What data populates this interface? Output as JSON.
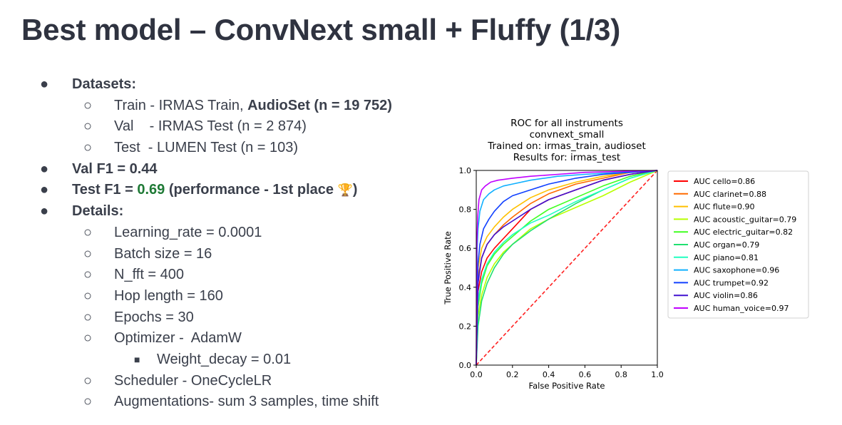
{
  "title": "Best model – ConvNext small + Fluffy (1/3)",
  "bullets": {
    "datasets_label": "Datasets:",
    "train_prefix": "Train - IRMAS Train, ",
    "train_bold": "AudioSet (n = 19 752)",
    "val": "Val    - IRMAS Test (n = 2 874)",
    "test": "Test  - LUMEN Test (n = 103)",
    "val_f1": "Val F1 = 0.44",
    "test_f1_prefix": "Test F1 = ",
    "test_f1_value": "0.69",
    "test_f1_suffix": " (performance - 1st place ",
    "test_f1_close": ")",
    "details_label": "Details:",
    "learning_rate": "Learning_rate = 0.0001",
    "batch_size": "Batch size = 16",
    "n_fft": "N_fft = 400",
    "hop_length": "Hop length = 160",
    "epochs": "Epochs = 30",
    "optimizer": "Optimizer -  AdamW",
    "weight_decay": "Weight_decay = 0.01",
    "scheduler": "Scheduler - OneCycleLR",
    "augmentations": "Augmentations- sum 3 samples, time shift"
  },
  "markers": {
    "level0": "●",
    "level1": "○",
    "level2": "■",
    "trophy": "🏆"
  },
  "chart_data": {
    "type": "line",
    "title_lines": [
      "ROC for all instruments",
      "convnext_small",
      "Trained on: irmas_train, audioset",
      "Results for: irmas_test"
    ],
    "xlabel": "False Positive Rate",
    "ylabel": "True Positive Rate",
    "xlim": [
      0,
      1
    ],
    "ylim": [
      0,
      1
    ],
    "xticks": [
      "0.0",
      "0.2",
      "0.4",
      "0.6",
      "0.8",
      "1.0"
    ],
    "yticks": [
      "0.0",
      "0.2",
      "0.4",
      "0.6",
      "0.8",
      "1.0"
    ],
    "legend_position": "outside-right",
    "chance_line_color": "#ff2020",
    "series": [
      {
        "name": "AUC cello=0.86",
        "color": "#ff0000",
        "x": [
          0,
          0.01,
          0.03,
          0.06,
          0.1,
          0.15,
          0.2,
          0.3,
          0.4,
          0.55,
          0.7,
          0.85,
          1
        ],
        "y": [
          0,
          0.38,
          0.48,
          0.55,
          0.6,
          0.65,
          0.7,
          0.8,
          0.85,
          0.9,
          0.95,
          0.98,
          1
        ]
      },
      {
        "name": "AUC clarinet=0.88",
        "color": "#ff6a00",
        "x": [
          0,
          0.01,
          0.03,
          0.06,
          0.1,
          0.15,
          0.2,
          0.3,
          0.4,
          0.55,
          0.7,
          0.85,
          1
        ],
        "y": [
          0,
          0.45,
          0.55,
          0.62,
          0.67,
          0.72,
          0.76,
          0.83,
          0.88,
          0.93,
          0.96,
          0.99,
          1
        ]
      },
      {
        "name": "AUC flute=0.90",
        "color": "#ffc000",
        "x": [
          0,
          0.01,
          0.03,
          0.06,
          0.1,
          0.15,
          0.2,
          0.3,
          0.4,
          0.55,
          0.7,
          0.85,
          1
        ],
        "y": [
          0,
          0.5,
          0.6,
          0.66,
          0.71,
          0.76,
          0.8,
          0.86,
          0.9,
          0.94,
          0.97,
          0.99,
          1
        ]
      },
      {
        "name": "AUC acoustic_guitar=0.79",
        "color": "#b8ff00",
        "x": [
          0,
          0.01,
          0.03,
          0.06,
          0.1,
          0.15,
          0.2,
          0.3,
          0.4,
          0.55,
          0.7,
          0.85,
          1
        ],
        "y": [
          0,
          0.25,
          0.36,
          0.45,
          0.52,
          0.58,
          0.62,
          0.7,
          0.75,
          0.81,
          0.87,
          0.94,
          1
        ]
      },
      {
        "name": "AUC electric_guitar=0.82",
        "color": "#40ff20",
        "x": [
          0,
          0.01,
          0.03,
          0.06,
          0.1,
          0.15,
          0.2,
          0.3,
          0.4,
          0.55,
          0.7,
          0.85,
          1
        ],
        "y": [
          0,
          0.3,
          0.42,
          0.51,
          0.57,
          0.62,
          0.66,
          0.74,
          0.8,
          0.86,
          0.92,
          0.97,
          1
        ]
      },
      {
        "name": "AUC organ=0.79",
        "color": "#20e070",
        "x": [
          0,
          0.01,
          0.03,
          0.06,
          0.1,
          0.15,
          0.2,
          0.3,
          0.4,
          0.55,
          0.7,
          0.85,
          1
        ],
        "y": [
          0,
          0.2,
          0.33,
          0.42,
          0.5,
          0.57,
          0.62,
          0.69,
          0.75,
          0.83,
          0.9,
          0.96,
          1
        ]
      },
      {
        "name": "AUC piano=0.81",
        "color": "#20ffc0",
        "x": [
          0,
          0.01,
          0.03,
          0.06,
          0.1,
          0.15,
          0.2,
          0.3,
          0.4,
          0.55,
          0.7,
          0.85,
          1
        ],
        "y": [
          0,
          0.33,
          0.44,
          0.52,
          0.58,
          0.63,
          0.67,
          0.73,
          0.77,
          0.84,
          0.9,
          0.96,
          1
        ]
      },
      {
        "name": "AUC saxophone=0.96",
        "color": "#10b0ff",
        "x": [
          0,
          0.005,
          0.01,
          0.02,
          0.04,
          0.07,
          0.1,
          0.15,
          0.2,
          0.3,
          0.45,
          0.6,
          0.8,
          1
        ],
        "y": [
          0,
          0.6,
          0.7,
          0.79,
          0.85,
          0.88,
          0.9,
          0.92,
          0.93,
          0.95,
          0.97,
          0.98,
          0.99,
          1
        ]
      },
      {
        "name": "AUC trumpet=0.92",
        "color": "#1040ff",
        "x": [
          0,
          0.01,
          0.02,
          0.04,
          0.07,
          0.1,
          0.15,
          0.2,
          0.3,
          0.4,
          0.55,
          0.7,
          0.85,
          1
        ],
        "y": [
          0,
          0.52,
          0.62,
          0.7,
          0.75,
          0.79,
          0.84,
          0.87,
          0.9,
          0.93,
          0.96,
          0.98,
          0.99,
          1
        ]
      },
      {
        "name": "AUC violin=0.86",
        "color": "#4010d0",
        "x": [
          0,
          0.01,
          0.03,
          0.06,
          0.1,
          0.15,
          0.2,
          0.3,
          0.4,
          0.55,
          0.7,
          0.85,
          1
        ],
        "y": [
          0,
          0.42,
          0.55,
          0.62,
          0.67,
          0.71,
          0.74,
          0.8,
          0.85,
          0.9,
          0.95,
          0.98,
          1
        ]
      },
      {
        "name": "AUC human_voice=0.97",
        "color": "#c000ff",
        "x": [
          0,
          0.003,
          0.008,
          0.015,
          0.03,
          0.05,
          0.08,
          0.12,
          0.2,
          0.3,
          0.45,
          0.6,
          0.8,
          1
        ],
        "y": [
          0,
          0.62,
          0.76,
          0.85,
          0.9,
          0.92,
          0.94,
          0.95,
          0.96,
          0.97,
          0.98,
          0.99,
          0.995,
          1
        ]
      }
    ]
  }
}
